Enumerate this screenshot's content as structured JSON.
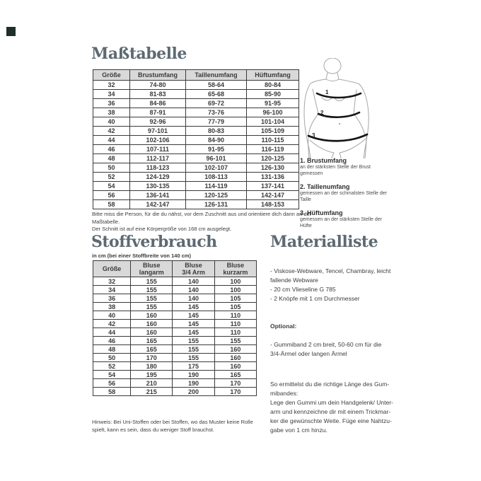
{
  "colors": {
    "logo": "#1d3026",
    "heading": "#5d6a73",
    "table_header_bg": "#d9d9d9"
  },
  "masstabelle": {
    "title": "Maßtabelle",
    "columns": [
      "Größe",
      "Brustumfang",
      "Taillenumfang",
      "Hüftumfang"
    ],
    "rows": [
      [
        "32",
        "74-80",
        "58-64",
        "80-84"
      ],
      [
        "34",
        "81-83",
        "65-68",
        "85-90"
      ],
      [
        "36",
        "84-86",
        "69-72",
        "91-95"
      ],
      [
        "38",
        "87-91",
        "73-76",
        "96-100"
      ],
      [
        "40",
        "92-96",
        "77-79",
        "101-104"
      ],
      [
        "42",
        "97-101",
        "80-83",
        "105-109"
      ],
      [
        "44",
        "102-106",
        "84-90",
        "110-115"
      ],
      [
        "46",
        "107-111",
        "91-95",
        "116-119"
      ],
      [
        "48",
        "112-117",
        "96-101",
        "120-125"
      ],
      [
        "50",
        "118-123",
        "102-107",
        "126-130"
      ],
      [
        "52",
        "124-129",
        "108-113",
        "131-136"
      ],
      [
        "54",
        "130-135",
        "114-119",
        "137-141"
      ],
      [
        "56",
        "136-141",
        "120-125",
        "142-147"
      ],
      [
        "58",
        "142-147",
        "126-131",
        "148-153"
      ]
    ],
    "note": [
      "Bitte miss die Person, für die du nähst, vor dem Zuschnitt aus und orientiere dich dann an der Maßtabelle.",
      "Der Schnitt ist auf eine Körpergröße von 168 cm ausgelegt."
    ]
  },
  "figure": {
    "markers": [
      "1",
      "2",
      "3"
    ],
    "legend": [
      {
        "label": "1. Brustumfang",
        "desc": "an der stärksten Stelle der Brust gemessen"
      },
      {
        "label": "2. Taillenumfang",
        "desc": "gemessen an der schmalsten Stelle der Taille"
      },
      {
        "label": "3. Hüftumfang",
        "desc": "gemessen an der stärksten Stelle der Hüfte"
      }
    ]
  },
  "stoffverbrauch": {
    "title": "Stoffverbrauch",
    "subtitle": "in cm (bei einer Stoffbreite von 140 cm)",
    "columns": [
      "Größe",
      "Bluse\nlangarm",
      "Bluse\n3/4 Arm",
      "Bluse\nkurzarm"
    ],
    "rows": [
      [
        "32",
        "155",
        "140",
        "100"
      ],
      [
        "34",
        "155",
        "140",
        "100"
      ],
      [
        "36",
        "155",
        "140",
        "105"
      ],
      [
        "38",
        "155",
        "145",
        "105"
      ],
      [
        "40",
        "160",
        "145",
        "110"
      ],
      [
        "42",
        "160",
        "145",
        "110"
      ],
      [
        "44",
        "160",
        "145",
        "110"
      ],
      [
        "46",
        "165",
        "155",
        "155"
      ],
      [
        "48",
        "165",
        "155",
        "160"
      ],
      [
        "50",
        "170",
        "155",
        "160"
      ],
      [
        "52",
        "180",
        "175",
        "160"
      ],
      [
        "54",
        "195",
        "190",
        "165"
      ],
      [
        "56",
        "210",
        "190",
        "170"
      ],
      [
        "58",
        "215",
        "200",
        "170"
      ]
    ],
    "note": [
      "Hinweis: Bei Uni-Stoffen oder bei Stoffen, wo das Muster keine Rolle",
      "spielt, kann es sein, dass du weniger Stoff brauchst."
    ]
  },
  "materialliste": {
    "title": "Materialliste",
    "items": [
      "- Viskose-Webware, Tencel, Chambray, leicht",
      "fallende Webware",
      "- 20 cm Vlieseline G 785",
      "- 2 Knöpfe mit 1 cm Durchmesser"
    ],
    "optional_label": "Optional:",
    "optional_items": [
      "- Gummiband 2 cm breit, 50-60 cm für die",
      "3/4-Ärmel oder langen Ärmel"
    ],
    "tip": [
      "So ermittelst du die richtige Länge des Gum-",
      "mibandes:",
      "Lege den Gummi um dein Handgelenk/ Unter-",
      "arm und kennzeichne dir mit einem Trickmar-",
      "ker die gewünschte Weite. Füge eine Nahtzu-",
      "gabe von 1 cm hinzu."
    ]
  }
}
